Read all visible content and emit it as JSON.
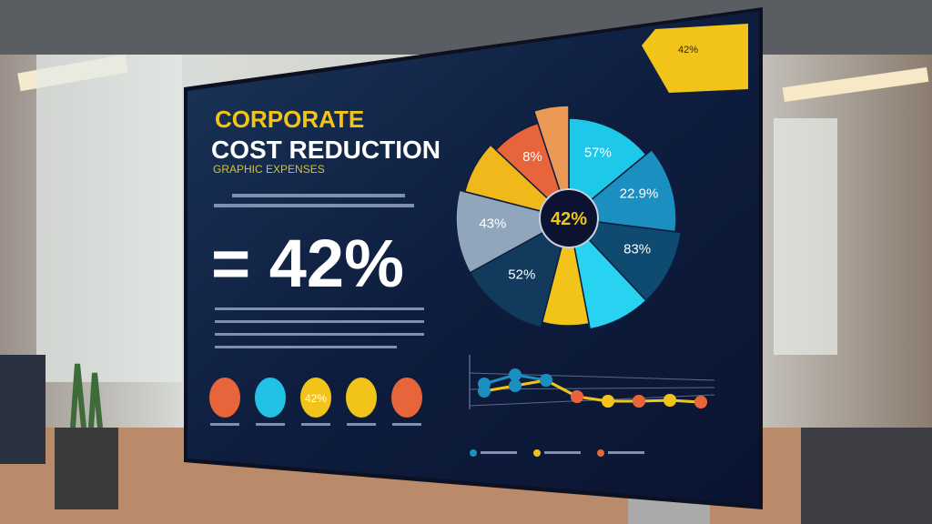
{
  "screen": {
    "title_line1": "CORPORATE",
    "title_line2": "COST REDUCTION",
    "subtitle": "GRAPHIC EXPENSES",
    "big_stat": "= 42%",
    "corner_badge": "42%"
  },
  "pie": {
    "center_label": "42%",
    "slices": [
      {
        "label": "57%",
        "value": 14,
        "color": "#1ec8e8"
      },
      {
        "label": "22.9%",
        "value": 13,
        "color": "#1a8fc0"
      },
      {
        "label": "83%",
        "value": 11,
        "color": "#0f4a70"
      },
      {
        "label": "",
        "value": 9,
        "color": "#27d3f0"
      },
      {
        "label": "",
        "value": 7,
        "color": "#f2c318"
      },
      {
        "label": "52%",
        "value": 13,
        "color": "#113a5c"
      },
      {
        "label": "43%",
        "value": 12,
        "color": "#8fa6bb"
      },
      {
        "label": "",
        "value": 8,
        "color": "#f0b81a"
      },
      {
        "label": "8%",
        "value": 8,
        "color": "#e8643a"
      },
      {
        "label": "",
        "value": 5,
        "color": "#eb9a55"
      }
    ]
  },
  "circles": [
    {
      "label": "",
      "color": "#e8643a"
    },
    {
      "label": "",
      "color": "#22c1e6"
    },
    {
      "label": "42%",
      "color": "#f2c318"
    },
    {
      "label": "",
      "color": "#f2c318"
    },
    {
      "label": "",
      "color": "#e8643a"
    }
  ],
  "line_chart": {
    "series_a": [
      3,
      4,
      3.4,
      1.6,
      1.1,
      1.1,
      1.2,
      1.0
    ],
    "series_b": [
      2.2,
      2.8,
      3.4,
      1.6,
      1.1,
      1.1,
      1.2,
      1.0
    ],
    "colors": [
      "#1a8fc0",
      "#f2c318",
      "#e8643a"
    ]
  }
}
